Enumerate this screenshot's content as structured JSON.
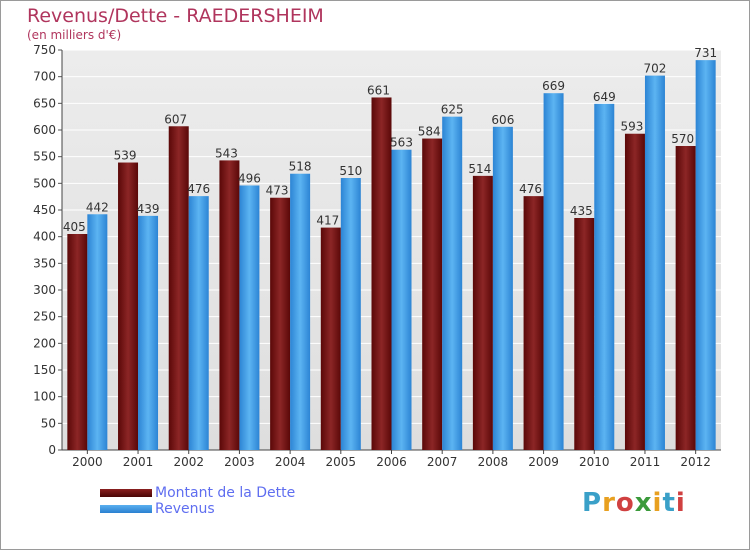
{
  "title": "Revenus/Dette - RAEDERSHEIM",
  "subtitle": "(en milliers d'€)",
  "logo": {
    "letters": [
      {
        "ch": "P",
        "color": "#3aa0c8"
      },
      {
        "ch": "r",
        "color": "#e8a020"
      },
      {
        "ch": "o",
        "color": "#d04040"
      },
      {
        "ch": "x",
        "color": "#3a9a3a"
      },
      {
        "ch": "i",
        "color": "#e8a020"
      },
      {
        "ch": "t",
        "color": "#3aa0c8"
      },
      {
        "ch": "i",
        "color": "#d04040"
      }
    ]
  },
  "chart_data": {
    "type": "bar",
    "categories": [
      "2000",
      "2001",
      "2002",
      "2003",
      "2004",
      "2005",
      "2006",
      "2007",
      "2008",
      "2009",
      "2010",
      "2011",
      "2012"
    ],
    "series": [
      {
        "name": "Montant de la Dette",
        "color": "#7b1414",
        "values": [
          405,
          539,
          607,
          543,
          473,
          417,
          661,
          584,
          514,
          476,
          435,
          593,
          570
        ]
      },
      {
        "name": "Revenus",
        "color": "#3c96e0",
        "values": [
          442,
          439,
          476,
          496,
          518,
          510,
          563,
          625,
          606,
          669,
          649,
          702,
          731
        ]
      }
    ],
    "ylim": [
      0,
      750
    ],
    "yticks": [
      0,
      50,
      100,
      150,
      200,
      250,
      300,
      350,
      400,
      450,
      500,
      550,
      600,
      650,
      700,
      750
    ],
    "grid": true,
    "legend": "bottom-left"
  }
}
